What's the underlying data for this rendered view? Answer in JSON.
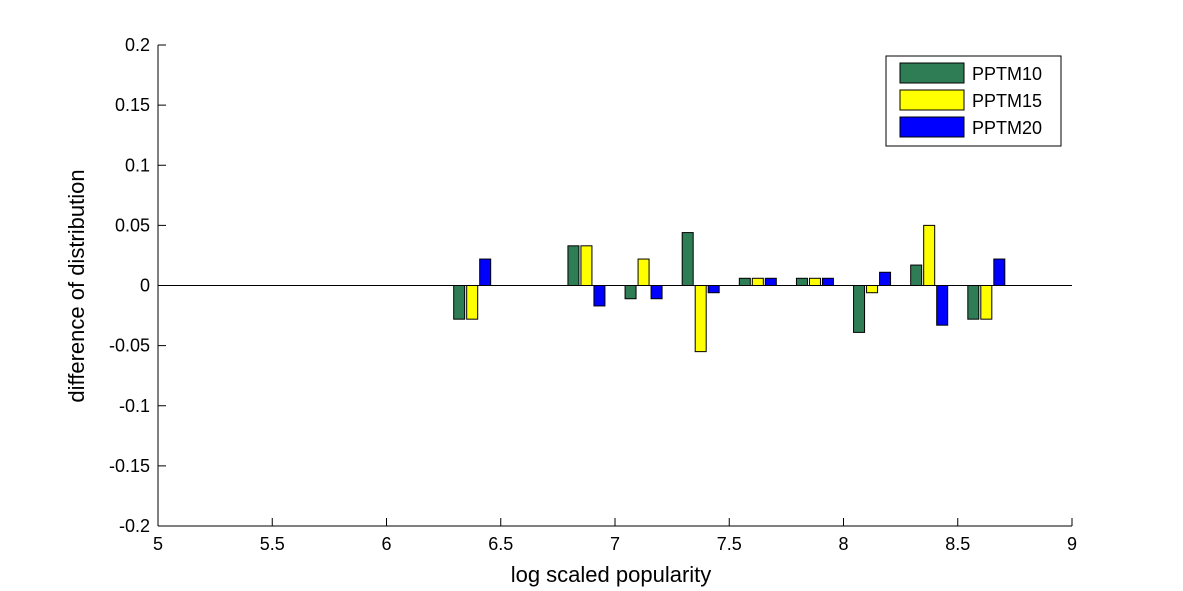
{
  "chart_data": {
    "type": "bar",
    "xlabel": "log scaled popularity",
    "ylabel": "difference of distribution",
    "xlim": [
      5,
      9
    ],
    "ylim": [
      -0.2,
      0.2
    ],
    "xticks": [
      "5",
      "5.5",
      "6",
      "6.5",
      "7",
      "7.5",
      "8",
      "8.5",
      "9"
    ],
    "yticks": [
      "-0.2",
      "-0.15",
      "-0.1",
      "-0.05",
      "0",
      "0.05",
      "0.1",
      "0.15",
      "0.2"
    ],
    "xtick_values": [
      5,
      5.5,
      6,
      6.5,
      7,
      7.5,
      8,
      8.5,
      9
    ],
    "ytick_values": [
      -0.2,
      -0.15,
      -0.1,
      -0.05,
      0,
      0.05,
      0.1,
      0.15,
      0.2
    ],
    "x": [
      6.375,
      6.875,
      7.125,
      7.375,
      7.625,
      7.875,
      8.125,
      8.375,
      8.625
    ],
    "legend_position": "top-right",
    "grid": false,
    "series": [
      {
        "name": "PPTM10",
        "color": "#2e7d55",
        "values": [
          -0.028,
          0.033,
          -0.011,
          0.044,
          0.006,
          0.006,
          -0.039,
          0.017,
          -0.028
        ]
      },
      {
        "name": "PPTM15",
        "color": "#ffff00",
        "values": [
          -0.028,
          0.033,
          0.022,
          -0.055,
          0.006,
          0.006,
          -0.006,
          0.05,
          -0.028
        ]
      },
      {
        "name": "PPTM20",
        "color": "#0000ff",
        "values": [
          0.022,
          -0.017,
          -0.011,
          -0.006,
          0.006,
          0.006,
          0.011,
          -0.033,
          0.022
        ]
      }
    ]
  }
}
